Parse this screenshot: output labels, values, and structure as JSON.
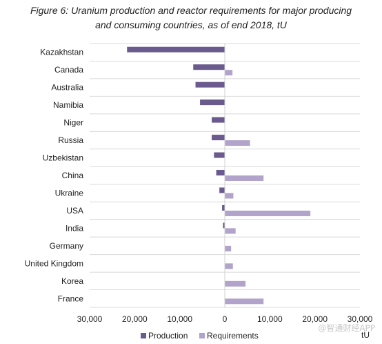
{
  "chart_data": {
    "type": "bar",
    "orientation": "horizontal",
    "title_lines": [
      "Figure 6: Uranium production and reactor requirements for major producing",
      "and consuming countries, as of end 2018, tU"
    ],
    "categories": [
      "Kazakhstan",
      "Canada",
      "Australia",
      "Namibia",
      "Niger",
      "Russia",
      "Uzbekistan",
      "China",
      "Ukraine",
      "USA",
      "India",
      "Germany",
      "United Kingdom",
      "Korea",
      "France"
    ],
    "series": [
      {
        "name": "Production",
        "color": "#6b5a8e",
        "values": [
          -21700,
          -7000,
          -6500,
          -5500,
          -2900,
          -2900,
          -2400,
          -1900,
          -1200,
          -600,
          -400,
          0,
          0,
          0,
          0
        ]
      },
      {
        "name": "Requirements",
        "color": "#b1a3c9",
        "values": [
          0,
          1700,
          0,
          0,
          0,
          5600,
          0,
          8600,
          1900,
          19000,
          2400,
          1400,
          1800,
          4600,
          8600
        ]
      }
    ],
    "xlim": [
      -30000,
      30000
    ],
    "xticks": [
      -30000,
      -20000,
      -10000,
      0,
      10000,
      20000,
      30000
    ],
    "tick_labels": [
      "30,000",
      "20,000",
      "10,000",
      "0",
      "10,000",
      "20,000",
      "30,000"
    ],
    "axis_unit": "tU",
    "grid": "horizontal",
    "legend": "bottom"
  },
  "watermark": "@智通财经APP"
}
